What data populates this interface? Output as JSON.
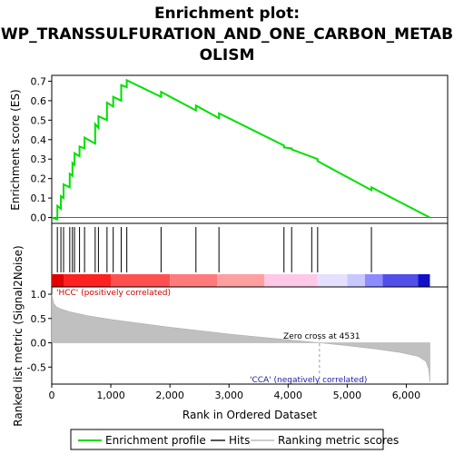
{
  "chart_data": {
    "type": "line",
    "title_lines": [
      "Enrichment plot:",
      "WP_TRANSSULFURATION_AND_ONE_CARBON_METAB",
      "OLISM"
    ],
    "top_panel": {
      "ylabel": "Enrichment score (ES)",
      "ylim": [
        -0.03,
        0.73
      ],
      "yticks": [
        0.0,
        0.1,
        0.2,
        0.3,
        0.4,
        0.5,
        0.6,
        0.7
      ],
      "ytick_labels": [
        "0.0",
        "0.1",
        "0.2",
        "0.3",
        "0.4",
        "0.5",
        "0.6",
        "0.7"
      ],
      "series": [
        {
          "name": "Enrichment profile",
          "color": "#00e000",
          "x": [
            0,
            95,
            95,
            155,
            155,
            200,
            200,
            305,
            305,
            350,
            350,
            385,
            385,
            470,
            470,
            555,
            555,
            735,
            735,
            790,
            790,
            935,
            935,
            1040,
            1040,
            1175,
            1175,
            1270,
            1270,
            1850,
            1850,
            2440,
            2440,
            2830,
            2830,
            3930,
            3930,
            4060,
            4060,
            4500,
            4500,
            5410,
            5410,
            6400
          ],
          "y": [
            0.0,
            -0.01,
            0.06,
            0.045,
            0.11,
            0.1,
            0.17,
            0.155,
            0.225,
            0.215,
            0.28,
            0.27,
            0.33,
            0.315,
            0.365,
            0.355,
            0.41,
            0.38,
            0.48,
            0.46,
            0.52,
            0.5,
            0.59,
            0.57,
            0.62,
            0.6,
            0.68,
            0.67,
            0.705,
            0.62,
            0.645,
            0.55,
            0.575,
            0.51,
            0.535,
            0.37,
            0.36,
            0.355,
            0.35,
            0.3,
            0.29,
            0.14,
            0.155,
            0.0
          ]
        }
      ]
    },
    "hits": [
      95,
      155,
      200,
      305,
      350,
      385,
      470,
      555,
      735,
      790,
      935,
      1040,
      1175,
      1270,
      1850,
      2440,
      2830,
      3930,
      4060,
      4400,
      4500,
      5410
    ],
    "color_bar": {
      "segments": [
        {
          "from": 0,
          "to": 200,
          "color": "#e00000"
        },
        {
          "from": 200,
          "to": 1000,
          "color": "#ff2020"
        },
        {
          "from": 1000,
          "to": 2000,
          "color": "#ff5050"
        },
        {
          "from": 2000,
          "to": 2800,
          "color": "#ff7a7a"
        },
        {
          "from": 2800,
          "to": 3600,
          "color": "#ffa0a0"
        },
        {
          "from": 3600,
          "to": 4500,
          "color": "#ffc8e6"
        },
        {
          "from": 4500,
          "to": 5000,
          "color": "#e6e0ff"
        },
        {
          "from": 5000,
          "to": 5300,
          "color": "#c8c8ff"
        },
        {
          "from": 5300,
          "to": 5600,
          "color": "#8c8cff"
        },
        {
          "from": 5600,
          "to": 6200,
          "color": "#5050e8"
        },
        {
          "from": 6200,
          "to": 6400,
          "color": "#1010c8"
        }
      ]
    },
    "bottom_panel": {
      "ylabel": "Ranked list metric (Signal2Noise)",
      "xlabel": "Rank in Ordered Dataset",
      "ylim": [
        -0.85,
        1.15
      ],
      "yticks": [
        1.0,
        0.5,
        0.0,
        -0.5
      ],
      "ytick_labels": [
        "1.0",
        "0.5",
        "0.0",
        "-0.5"
      ],
      "metric_curve": {
        "x": [
          0,
          30,
          80,
          150,
          300,
          600,
          1000,
          1500,
          2000,
          2500,
          3000,
          3500,
          3950,
          4531,
          5000,
          5500,
          5900,
          6200,
          6330,
          6380,
          6400
        ],
        "y": [
          1.0,
          0.82,
          0.74,
          0.7,
          0.64,
          0.56,
          0.48,
          0.4,
          0.32,
          0.25,
          0.18,
          0.12,
          0.07,
          0.0,
          -0.06,
          -0.13,
          -0.2,
          -0.28,
          -0.38,
          -0.55,
          -0.8
        ]
      },
      "zero_cross": 4531,
      "annotations": {
        "pos": "'HCC' (positively correlated)",
        "neg": "'CCA' (negatively correlated)",
        "zero": "Zero cross at 4531"
      }
    },
    "xlim": [
      0,
      6700
    ],
    "xticks": [
      0,
      1000,
      2000,
      3000,
      4000,
      5000,
      6000
    ],
    "xtick_labels": [
      "0",
      "1,000",
      "2,000",
      "3,000",
      "4,000",
      "5,000",
      "6,000"
    ],
    "legend": [
      "Enrichment profile",
      "Hits",
      "Ranking metric scores"
    ]
  }
}
